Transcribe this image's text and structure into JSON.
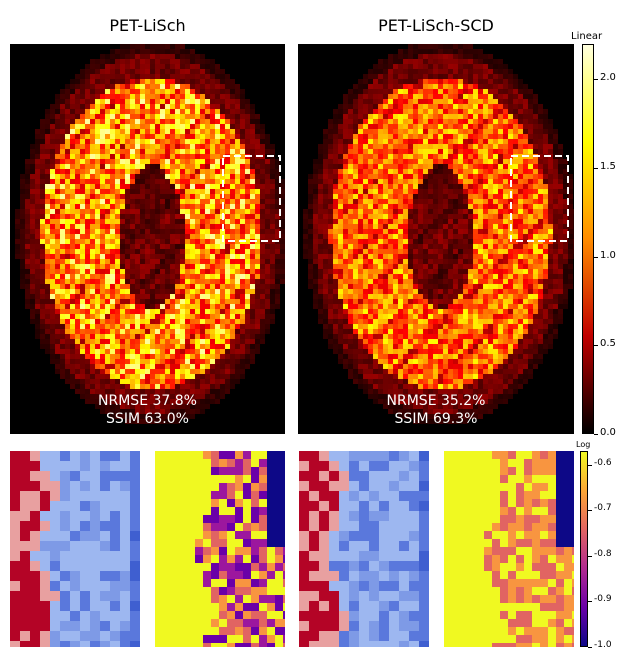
{
  "panels": [
    {
      "title": "PET-LiSch",
      "nrmse": "NRMSE 37.8%",
      "ssim": "SSIM  63.0%"
    },
    {
      "title": "PET-LiSch-SCD",
      "nrmse": "NRMSE 35.2%",
      "ssim": "SSIM  69.3%"
    }
  ],
  "linear_colorbar": {
    "title": "Linear",
    "ticks": [
      "2.0",
      "1.5",
      "1.0",
      "0.5",
      "0.0"
    ],
    "colors": [
      "#ffffe0",
      "#ffff00",
      "#ff8c00",
      "#c00000",
      "#000000"
    ]
  },
  "log_colorbar": {
    "title": "Log",
    "ticks": [
      "-0.6",
      "-0.7",
      "-0.8",
      "-0.9",
      "-1.0"
    ],
    "colors": [
      "#f0f921",
      "#fca636",
      "#e16462",
      "#b12a90",
      "#6a00a8",
      "#0d0887"
    ]
  },
  "zoom_colors": {
    "blue": "#5a78dc",
    "light_blue": "#9db7f0",
    "red": "#b40426",
    "pink": "#e8a0a0",
    "yellow": "#f0f921",
    "orange": "#f89540",
    "purple": "#9c179e",
    "navy": "#0d0887"
  }
}
